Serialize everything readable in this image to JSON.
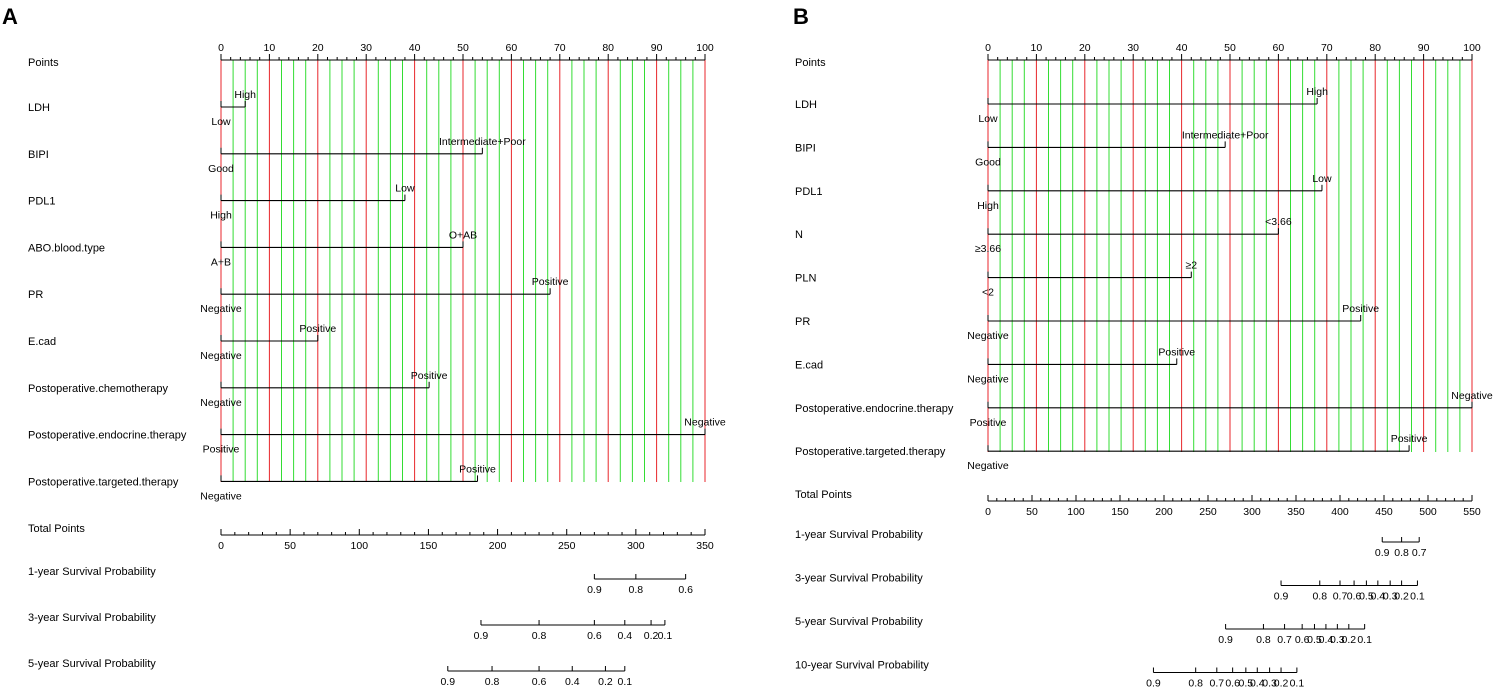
{
  "chart_data": [
    {
      "type": "nomogram",
      "panel": "A",
      "points_label": "Points",
      "points_range": [
        0,
        100
      ],
      "points_ticks": [
        0,
        10,
        20,
        30,
        40,
        50,
        60,
        70,
        80,
        90,
        100
      ],
      "variables": [
        {
          "name": "LDH",
          "levels": [
            {
              "label": "Low",
              "points": 0
            },
            {
              "label": "High",
              "points": 5
            }
          ]
        },
        {
          "name": "BIPI",
          "levels": [
            {
              "label": "Good",
              "points": 0
            },
            {
              "label": "Intermediate+Poor",
              "points": 54
            }
          ]
        },
        {
          "name": "PDL1",
          "levels": [
            {
              "label": "High",
              "points": 0
            },
            {
              "label": "Low",
              "points": 38
            }
          ]
        },
        {
          "name": "ABO.blood.type",
          "levels": [
            {
              "label": "A+B",
              "points": 0
            },
            {
              "label": "O+AB",
              "points": 50
            }
          ]
        },
        {
          "name": "PR",
          "levels": [
            {
              "label": "Negative",
              "points": 0
            },
            {
              "label": "Positive",
              "points": 68
            }
          ]
        },
        {
          "name": "E.cad",
          "levels": [
            {
              "label": "Negative",
              "points": 0
            },
            {
              "label": "Positive",
              "points": 20
            }
          ]
        },
        {
          "name": "Postoperative.chemotherapy",
          "levels": [
            {
              "label": "Negative",
              "points": 0
            },
            {
              "label": "Positive",
              "points": 43
            }
          ]
        },
        {
          "name": "Postoperative.endocrine.therapy",
          "levels": [
            {
              "label": "Positive",
              "points": 0
            },
            {
              "label": "Negative",
              "points": 100
            }
          ]
        },
        {
          "name": "Postoperative.targeted.therapy",
          "levels": [
            {
              "label": "Negative",
              "points": 0
            },
            {
              "label": "Positive",
              "points": 53
            }
          ]
        }
      ],
      "total_points": {
        "label": "Total Points",
        "range": [
          0,
          350
        ],
        "ticks": [
          0,
          50,
          100,
          150,
          200,
          250,
          300,
          350
        ]
      },
      "probability_scales": [
        {
          "label": "1-year Survival Probability",
          "ticks": [
            {
              "label": "0.9",
              "total": 270
            },
            {
              "label": "0.8",
              "total": 300
            },
            {
              "label": "0.6",
              "total": 336
            }
          ],
          "range": [
            270,
            336
          ]
        },
        {
          "label": "3-year Survival Probability",
          "ticks": [
            {
              "label": "0.9",
              "total": 188
            },
            {
              "label": "0.8",
              "total": 230
            },
            {
              "label": "0.6",
              "total": 270
            },
            {
              "label": "0.4",
              "total": 292
            },
            {
              "label": "0.2",
              "total": 311
            },
            {
              "label": "0.1",
              "total": 321
            }
          ],
          "range": [
            188,
            321
          ]
        },
        {
          "label": "5-year Survival Probability",
          "ticks": [
            {
              "label": "0.9",
              "total": 164
            },
            {
              "label": "0.8",
              "total": 196
            },
            {
              "label": "0.6",
              "total": 230
            },
            {
              "label": "0.4",
              "total": 254
            },
            {
              "label": "0.2",
              "total": 278
            },
            {
              "label": "0.1",
              "total": 292
            }
          ],
          "range": [
            164,
            292
          ]
        }
      ]
    },
    {
      "type": "nomogram",
      "panel": "B",
      "points_label": "Points",
      "points_range": [
        0,
        100
      ],
      "points_ticks": [
        0,
        10,
        20,
        30,
        40,
        50,
        60,
        70,
        80,
        90,
        100
      ],
      "variables": [
        {
          "name": "LDH",
          "levels": [
            {
              "label": "Low",
              "points": 0
            },
            {
              "label": "High",
              "points": 68
            }
          ]
        },
        {
          "name": "BIPI",
          "levels": [
            {
              "label": "Good",
              "points": 0
            },
            {
              "label": "Intermediate+Poor",
              "points": 49
            }
          ]
        },
        {
          "name": "PDL1",
          "levels": [
            {
              "label": "High",
              "points": 0
            },
            {
              "label": "Low",
              "points": 69
            }
          ]
        },
        {
          "name": "N",
          "levels": [
            {
              "label": "≥3.66",
              "points": 0
            },
            {
              "label": "<3.66",
              "points": 60
            }
          ]
        },
        {
          "name": "PLN",
          "levels": [
            {
              "label": "<2",
              "points": 0
            },
            {
              "label": "≥2",
              "points": 42
            }
          ]
        },
        {
          "name": "PR",
          "levels": [
            {
              "label": "Negative",
              "points": 0
            },
            {
              "label": "Positive",
              "points": 77
            }
          ]
        },
        {
          "name": "E.cad",
          "levels": [
            {
              "label": "Negative",
              "points": 0
            },
            {
              "label": "Positive",
              "points": 39
            }
          ]
        },
        {
          "name": "Postoperative.endocrine.therapy",
          "levels": [
            {
              "label": "Positive",
              "points": 0
            },
            {
              "label": "Negative",
              "points": 100
            }
          ]
        },
        {
          "name": "Postoperative.targeted.therapy",
          "levels": [
            {
              "label": "Negative",
              "points": 0
            },
            {
              "label": "Positive",
              "points": 87
            }
          ]
        }
      ],
      "total_points": {
        "label": "Total Points",
        "range": [
          0,
          550
        ],
        "ticks": [
          0,
          50,
          100,
          150,
          200,
          250,
          300,
          350,
          400,
          450,
          500,
          550
        ]
      },
      "probability_scales": [
        {
          "label": "1-year Survival Probability",
          "ticks": [
            {
              "label": "0.9",
              "total": 448
            },
            {
              "label": "0.8",
              "total": 470
            },
            {
              "label": "0.7",
              "total": 490
            }
          ],
          "range": [
            448,
            490
          ]
        },
        {
          "label": "3-year Survival Probability",
          "ticks": [
            {
              "label": "0.9",
              "total": 333
            },
            {
              "label": "0.8",
              "total": 377
            },
            {
              "label": "0.7",
              "total": 400
            },
            {
              "label": "0.6",
              "total": 416
            },
            {
              "label": "0.5",
              "total": 430
            },
            {
              "label": "0.4",
              "total": 443
            },
            {
              "label": "0.3",
              "total": 457
            },
            {
              "label": "0.2",
              "total": 470
            },
            {
              "label": "0.1",
              "total": 488
            }
          ],
          "range": [
            333,
            488
          ]
        },
        {
          "label": "5-year Survival Probability",
          "ticks": [
            {
              "label": "0.9",
              "total": 270
            },
            {
              "label": "0.8",
              "total": 313
            },
            {
              "label": "0.7",
              "total": 337
            },
            {
              "label": "0.6",
              "total": 357
            },
            {
              "label": "0.5",
              "total": 371
            },
            {
              "label": "0.4",
              "total": 384
            },
            {
              "label": "0.3",
              "total": 397
            },
            {
              "label": "0.2",
              "total": 410
            },
            {
              "label": "0.1",
              "total": 428
            }
          ],
          "range": [
            270,
            428
          ]
        },
        {
          "label": "10-year Survival Probability",
          "ticks": [
            {
              "label": "0.9",
              "total": 188
            },
            {
              "label": "0.8",
              "total": 236
            },
            {
              "label": "0.7",
              "total": 260
            },
            {
              "label": "0.6",
              "total": 278
            },
            {
              "label": "0.5",
              "total": 293
            },
            {
              "label": "0.4",
              "total": 306
            },
            {
              "label": "0.3",
              "total": 320
            },
            {
              "label": "0.2",
              "total": 333
            },
            {
              "label": "0.1",
              "total": 351
            }
          ],
          "range": [
            188,
            351
          ]
        }
      ]
    }
  ],
  "colors": {
    "major_grid": "#e8262b",
    "minor_grid": "#33dd33",
    "axis": "#000000"
  }
}
